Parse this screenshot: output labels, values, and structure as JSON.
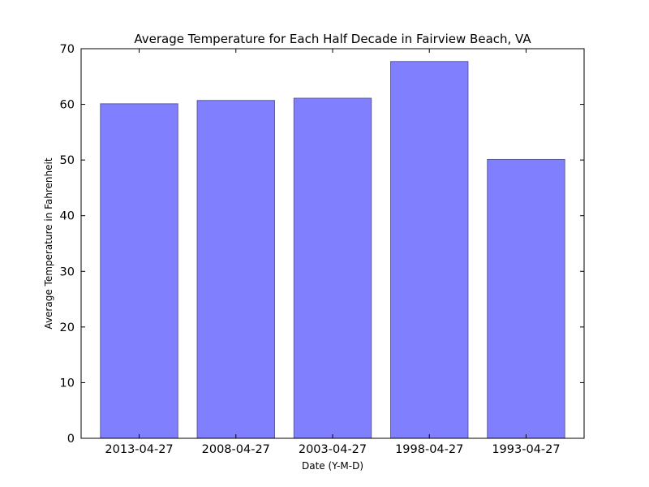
{
  "chart_data": {
    "type": "bar",
    "title": "Average Temperature for Each Half Decade in Fairview Beach, VA",
    "xlabel": "Date (Y-M-D)",
    "ylabel": "Average Temperature in Fahrenheit",
    "categories": [
      "2013-04-27",
      "2008-04-27",
      "2003-04-27",
      "1998-04-27",
      "1993-04-27"
    ],
    "values": [
      60.1,
      60.7,
      61.1,
      67.7,
      50.1
    ],
    "ylim": [
      0,
      70
    ],
    "yticks": [
      "0",
      "10",
      "20",
      "30",
      "40",
      "50",
      "60",
      "70"
    ],
    "grid": false,
    "colors": {
      "bar_fill": "#8080ff",
      "bar_stroke": "#5a5a9a",
      "axis": "#000000"
    }
  }
}
